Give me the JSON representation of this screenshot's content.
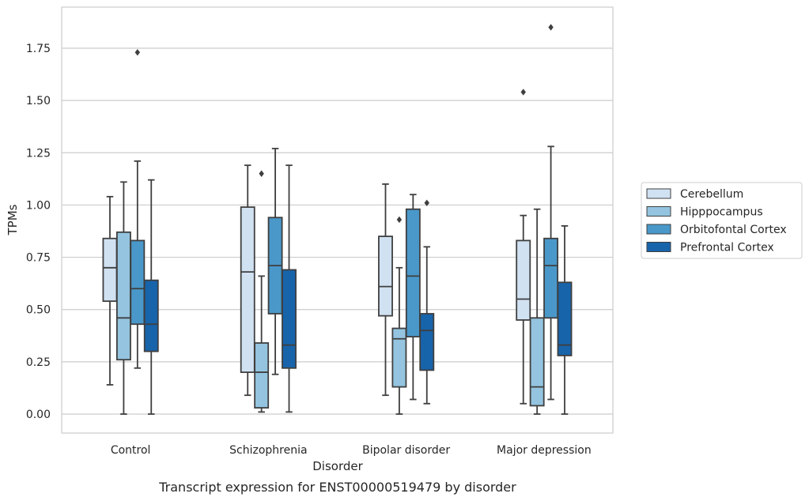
{
  "chart_data": {
    "type": "box",
    "xlabel": "Disorder",
    "ylabel": "TPMs",
    "caption": "Transcript expression for ENST00000519479 by disorder",
    "ylim": [
      -0.09,
      1.95
    ],
    "yticks": [
      "0.00",
      "0.25",
      "0.50",
      "0.75",
      "1.00",
      "1.25",
      "1.50",
      "1.75"
    ],
    "grid": true,
    "legend_position": "right",
    "categories": [
      "Control",
      "Schizophrenia",
      "Bipolar disorder",
      "Major depression"
    ],
    "series": [
      {
        "name": "Cerebellum",
        "color": "#d0e1f2",
        "boxes": [
          {
            "whislo": 0.14,
            "q1": 0.54,
            "med": 0.7,
            "q3": 0.84,
            "whishi": 1.04,
            "fliers": []
          },
          {
            "whislo": 0.09,
            "q1": 0.2,
            "med": 0.68,
            "q3": 0.99,
            "whishi": 1.19,
            "fliers": []
          },
          {
            "whislo": 0.09,
            "q1": 0.47,
            "med": 0.61,
            "q3": 0.85,
            "whishi": 1.1,
            "fliers": []
          },
          {
            "whislo": 0.05,
            "q1": 0.45,
            "med": 0.55,
            "q3": 0.83,
            "whishi": 0.95,
            "fliers": [
              1.54
            ]
          }
        ]
      },
      {
        "name": "Hipppocampus",
        "color": "#94c4df",
        "boxes": [
          {
            "whislo": 0.0,
            "q1": 0.26,
            "med": 0.46,
            "q3": 0.87,
            "whishi": 1.11,
            "fliers": []
          },
          {
            "whislo": 0.01,
            "q1": 0.03,
            "med": 0.2,
            "q3": 0.34,
            "whishi": 0.66,
            "fliers": [
              1.15
            ]
          },
          {
            "whislo": 0.0,
            "q1": 0.13,
            "med": 0.36,
            "q3": 0.41,
            "whishi": 0.7,
            "fliers": [
              0.93
            ]
          },
          {
            "whislo": 0.0,
            "q1": 0.04,
            "med": 0.13,
            "q3": 0.46,
            "whishi": 0.98,
            "fliers": []
          }
        ]
      },
      {
        "name": "Orbitofontal Cortex",
        "color": "#4a98c9",
        "boxes": [
          {
            "whislo": 0.22,
            "q1": 0.43,
            "med": 0.6,
            "q3": 0.83,
            "whishi": 1.21,
            "fliers": [
              1.73
            ]
          },
          {
            "whislo": 0.19,
            "q1": 0.48,
            "med": 0.71,
            "q3": 0.94,
            "whishi": 1.27,
            "fliers": []
          },
          {
            "whislo": 0.07,
            "q1": 0.37,
            "med": 0.66,
            "q3": 0.98,
            "whishi": 1.05,
            "fliers": []
          },
          {
            "whislo": 0.07,
            "q1": 0.46,
            "med": 0.71,
            "q3": 0.84,
            "whishi": 1.28,
            "fliers": [
              1.85
            ]
          }
        ]
      },
      {
        "name": "Prefrontal Cortex",
        "color": "#1764ab",
        "boxes": [
          {
            "whislo": 0.0,
            "q1": 0.3,
            "med": 0.43,
            "q3": 0.64,
            "whishi": 1.12,
            "fliers": []
          },
          {
            "whislo": 0.01,
            "q1": 0.22,
            "med": 0.33,
            "q3": 0.69,
            "whishi": 1.19,
            "fliers": []
          },
          {
            "whislo": 0.05,
            "q1": 0.21,
            "med": 0.4,
            "q3": 0.48,
            "whishi": 0.8,
            "fliers": [
              1.01
            ]
          },
          {
            "whislo": 0.0,
            "q1": 0.28,
            "med": 0.33,
            "q3": 0.63,
            "whishi": 0.9,
            "fliers": []
          }
        ]
      }
    ]
  }
}
